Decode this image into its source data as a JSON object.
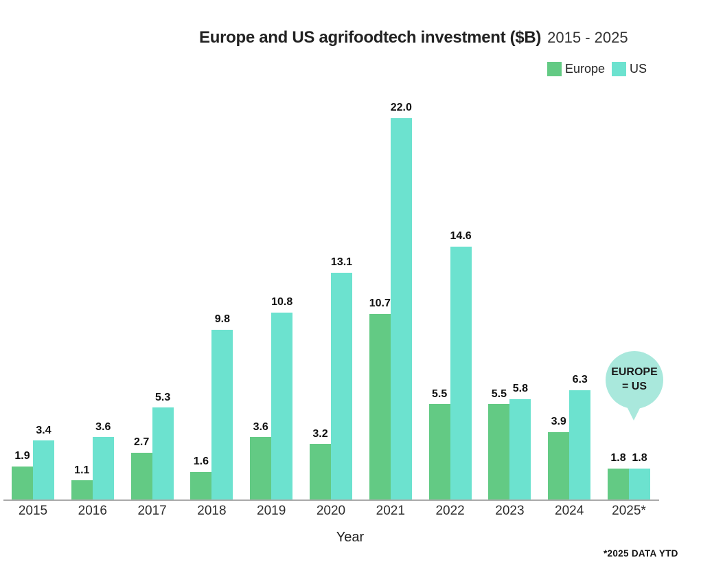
{
  "title": {
    "main": "Europe and US agrifoodtech investment ($B)",
    "range": "2015 - 2025"
  },
  "legend": [
    {
      "label": "Europe",
      "color": "#63ca84"
    },
    {
      "label": "US",
      "color": "#6ce2cf"
    }
  ],
  "chart_data": {
    "type": "bar",
    "title": "Europe and US agrifoodtech investment ($B) 2015 - 2025",
    "categories": [
      "2015",
      "2016",
      "2017",
      "2018",
      "2019",
      "2020",
      "2021",
      "2022",
      "2023",
      "2024",
      "2025*"
    ],
    "series": [
      {
        "name": "Europe",
        "color": "#63ca84",
        "values": [
          1.9,
          1.1,
          2.7,
          1.6,
          3.6,
          3.2,
          10.7,
          5.5,
          5.5,
          3.9,
          1.8
        ]
      },
      {
        "name": "US",
        "color": "#6ce2cf",
        "values": [
          3.4,
          3.6,
          5.3,
          9.8,
          10.8,
          13.1,
          22.0,
          14.6,
          5.8,
          6.3,
          1.8
        ]
      }
    ],
    "xlabel": "Year",
    "ylabel": "",
    "ylim": [
      0,
      22.5
    ],
    "grid": false,
    "legend_position": "top-right",
    "value_labels": true,
    "value_label_format": "one-decimal"
  },
  "annotation": {
    "line1": "EUROPE",
    "line2": "= US",
    "bubble_color": "#a9e8dc"
  },
  "xaxis": {
    "label": "Year"
  },
  "footnote": "*2025 DATA YTD",
  "colors": {
    "europe": "#63ca84",
    "us": "#6ce2cf",
    "bubble": "#a9e8dc",
    "axis_line": "#a9a9a9",
    "text": "#222222"
  }
}
